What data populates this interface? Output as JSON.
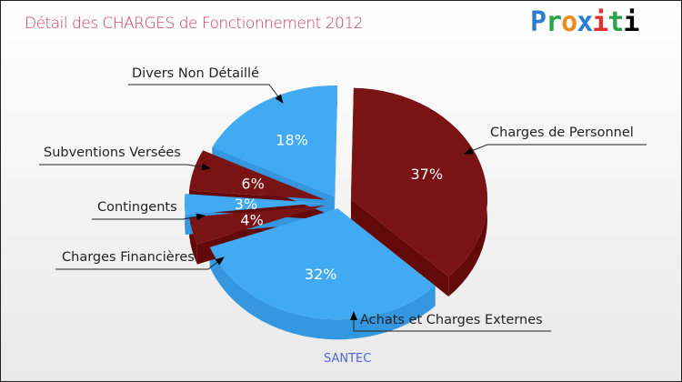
{
  "title": "Détail des CHARGES de Fonctionnement 2012",
  "logo": "Proxiti",
  "footer": "SANTEC",
  "chart_data": {
    "type": "pie",
    "title": "Détail des CHARGES de Fonctionnement 2012",
    "slices": [
      {
        "label": "Charges de Personnel",
        "value": 37,
        "pct": "37%",
        "color": "#7a1414"
      },
      {
        "label": "Achats et Charges Externes",
        "value": 32,
        "pct": "32%",
        "color": "#42aaf2"
      },
      {
        "label": "Charges Financières",
        "value": 4,
        "pct": "4%",
        "color": "#7a1414"
      },
      {
        "label": "Contingents",
        "value": 3,
        "pct": "3%",
        "color": "#42aaf2"
      },
      {
        "label": "Subventions Versées",
        "value": 6,
        "pct": "6%",
        "color": "#7a1414"
      },
      {
        "label": "Divers Non Détaillé",
        "value": 18,
        "pct": "18%",
        "color": "#42aaf2"
      }
    ]
  }
}
